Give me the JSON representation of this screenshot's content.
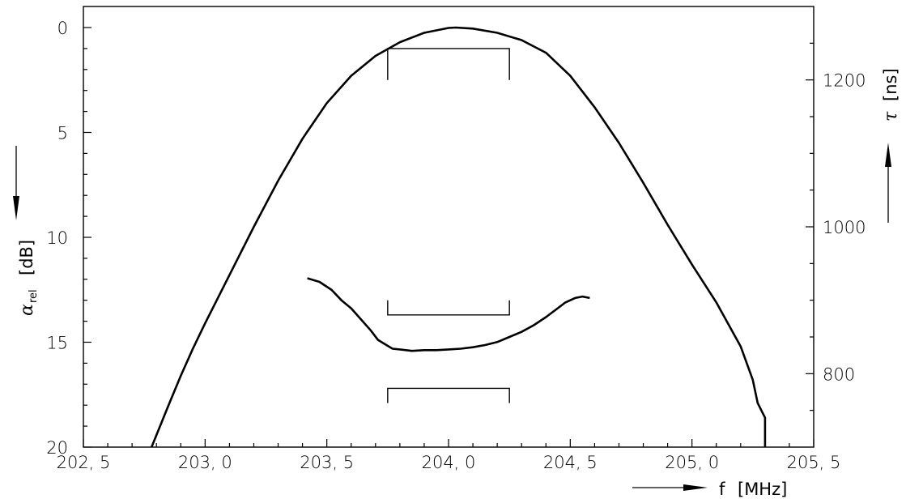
{
  "chart_data": {
    "type": "line",
    "x_axis": {
      "label": "f",
      "unit": "[MHz]",
      "range": [
        202.5,
        205.5
      ],
      "ticks": [
        202.5,
        203.0,
        203.5,
        204.0,
        204.5,
        205.0,
        205.5
      ],
      "tick_labels": [
        "202, 5",
        "203, 0",
        "203, 5",
        "204, 0",
        "204, 5",
        "205, 0",
        "205, 5"
      ],
      "minor_step": 0.1
    },
    "y_left": {
      "label": "α",
      "label_sub": "rel",
      "unit": "[dB]",
      "range": [
        0,
        20
      ],
      "inverted": true,
      "ticks": [
        0,
        5,
        10,
        15,
        20
      ],
      "tick_labels": [
        "0",
        "5",
        "10",
        "15",
        "20"
      ],
      "minor_step": 1
    },
    "y_right": {
      "label": "τ",
      "unit": "[ns]",
      "range": [
        700,
        1300
      ],
      "ticks": [
        800,
        1000,
        1200
      ],
      "tick_labels": [
        "800",
        "1000",
        "1200"
      ],
      "minor_step": 50
    },
    "series": [
      {
        "axis": "left",
        "points": [
          [
            202.78,
            20
          ],
          [
            202.85,
            18.0
          ],
          [
            202.9,
            16.6
          ],
          [
            202.95,
            15.3
          ],
          [
            203.0,
            14.1
          ],
          [
            203.1,
            11.8
          ],
          [
            203.2,
            9.5
          ],
          [
            203.3,
            7.3
          ],
          [
            203.4,
            5.3
          ],
          [
            203.5,
            3.6
          ],
          [
            203.6,
            2.3
          ],
          [
            203.7,
            1.35
          ],
          [
            203.8,
            0.7
          ],
          [
            203.9,
            0.25
          ],
          [
            204.0,
            0.02
          ],
          [
            204.03,
            0.0
          ],
          [
            204.1,
            0.05
          ],
          [
            204.2,
            0.25
          ],
          [
            204.3,
            0.6
          ],
          [
            204.4,
            1.2
          ],
          [
            204.5,
            2.3
          ],
          [
            204.6,
            3.8
          ],
          [
            204.7,
            5.5
          ],
          [
            204.8,
            7.4
          ],
          [
            204.9,
            9.4
          ],
          [
            205.0,
            11.3
          ],
          [
            205.1,
            13.1
          ],
          [
            205.2,
            15.2
          ],
          [
            205.25,
            16.8
          ],
          [
            205.3,
            18.6
          ],
          [
            205.27,
            17.9
          ],
          [
            205.3,
            20
          ]
        ]
      },
      {
        "axis": "right",
        "points": [
          [
            203.42,
            930
          ],
          [
            203.47,
            925
          ],
          [
            203.52,
            914
          ],
          [
            203.56,
            900
          ],
          [
            203.6,
            889
          ],
          [
            203.64,
            874
          ],
          [
            203.68,
            859
          ],
          [
            203.71,
            846
          ],
          [
            203.74,
            840
          ],
          [
            203.77,
            834
          ],
          [
            203.8,
            833
          ],
          [
            203.85,
            831
          ],
          [
            203.9,
            832
          ],
          [
            203.95,
            832
          ],
          [
            204.0,
            833
          ],
          [
            204.05,
            834
          ],
          [
            204.1,
            836
          ],
          [
            204.15,
            839
          ],
          [
            204.2,
            843
          ],
          [
            204.25,
            850
          ],
          [
            204.3,
            857
          ],
          [
            204.35,
            866
          ],
          [
            204.4,
            877
          ],
          [
            204.44,
            887
          ],
          [
            204.48,
            897
          ],
          [
            204.52,
            903
          ],
          [
            204.55,
            905
          ],
          [
            204.58,
            903
          ]
        ]
      }
    ],
    "tolerance_marks": [
      {
        "axis": "left",
        "x": [
          203.75,
          204.25
        ],
        "level": 1.0,
        "legs_to": 2.5
      },
      {
        "axis": "left",
        "x": [
          203.75,
          204.25
        ],
        "level": 13.7,
        "legs_to": 13.0
      },
      {
        "axis": "left",
        "x": [
          203.75,
          204.25
        ],
        "level": 17.2,
        "legs_to": 17.9
      }
    ],
    "grid": false,
    "legend": "none"
  }
}
